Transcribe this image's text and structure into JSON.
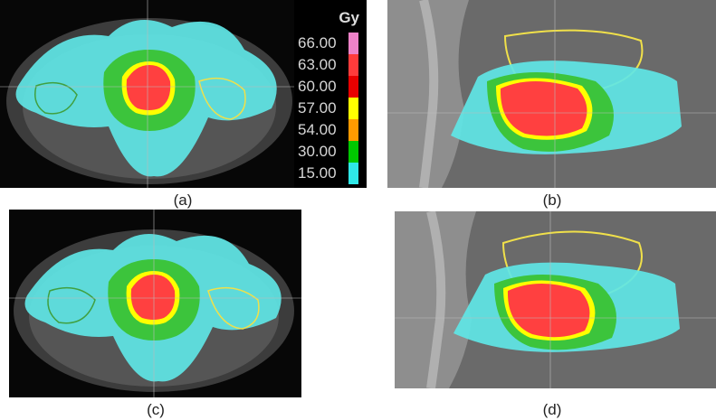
{
  "captions": {
    "a": "(a)",
    "b": "(b)",
    "c": "(c)",
    "d": "(d)"
  },
  "legend": {
    "unit": "Gy",
    "entries": [
      {
        "label": "66.00",
        "color": "#ee82c8"
      },
      {
        "label": "63.00",
        "color": "#ff3b3b"
      },
      {
        "label": "60.00",
        "color": "#e80000"
      },
      {
        "label": "57.00",
        "color": "#ffff00"
      },
      {
        "label": "54.00",
        "color": "#ff9a00"
      },
      {
        "label": "30.00",
        "color": "#00c800"
      },
      {
        "label": "15.00",
        "color": "#2fe8e8"
      }
    ]
  },
  "colors": {
    "ct_dark": "#0b0b0b",
    "ct_body": "#4a4a4a",
    "ct_bone": "#9a9a9a",
    "dose_low": "#5fe6e6",
    "dose_mid": "#3cc43c",
    "dose_high": "#ff4040",
    "contour_yellow": "#f0e04a",
    "contour_red": "#c05030",
    "contour_green": "#40a040"
  }
}
